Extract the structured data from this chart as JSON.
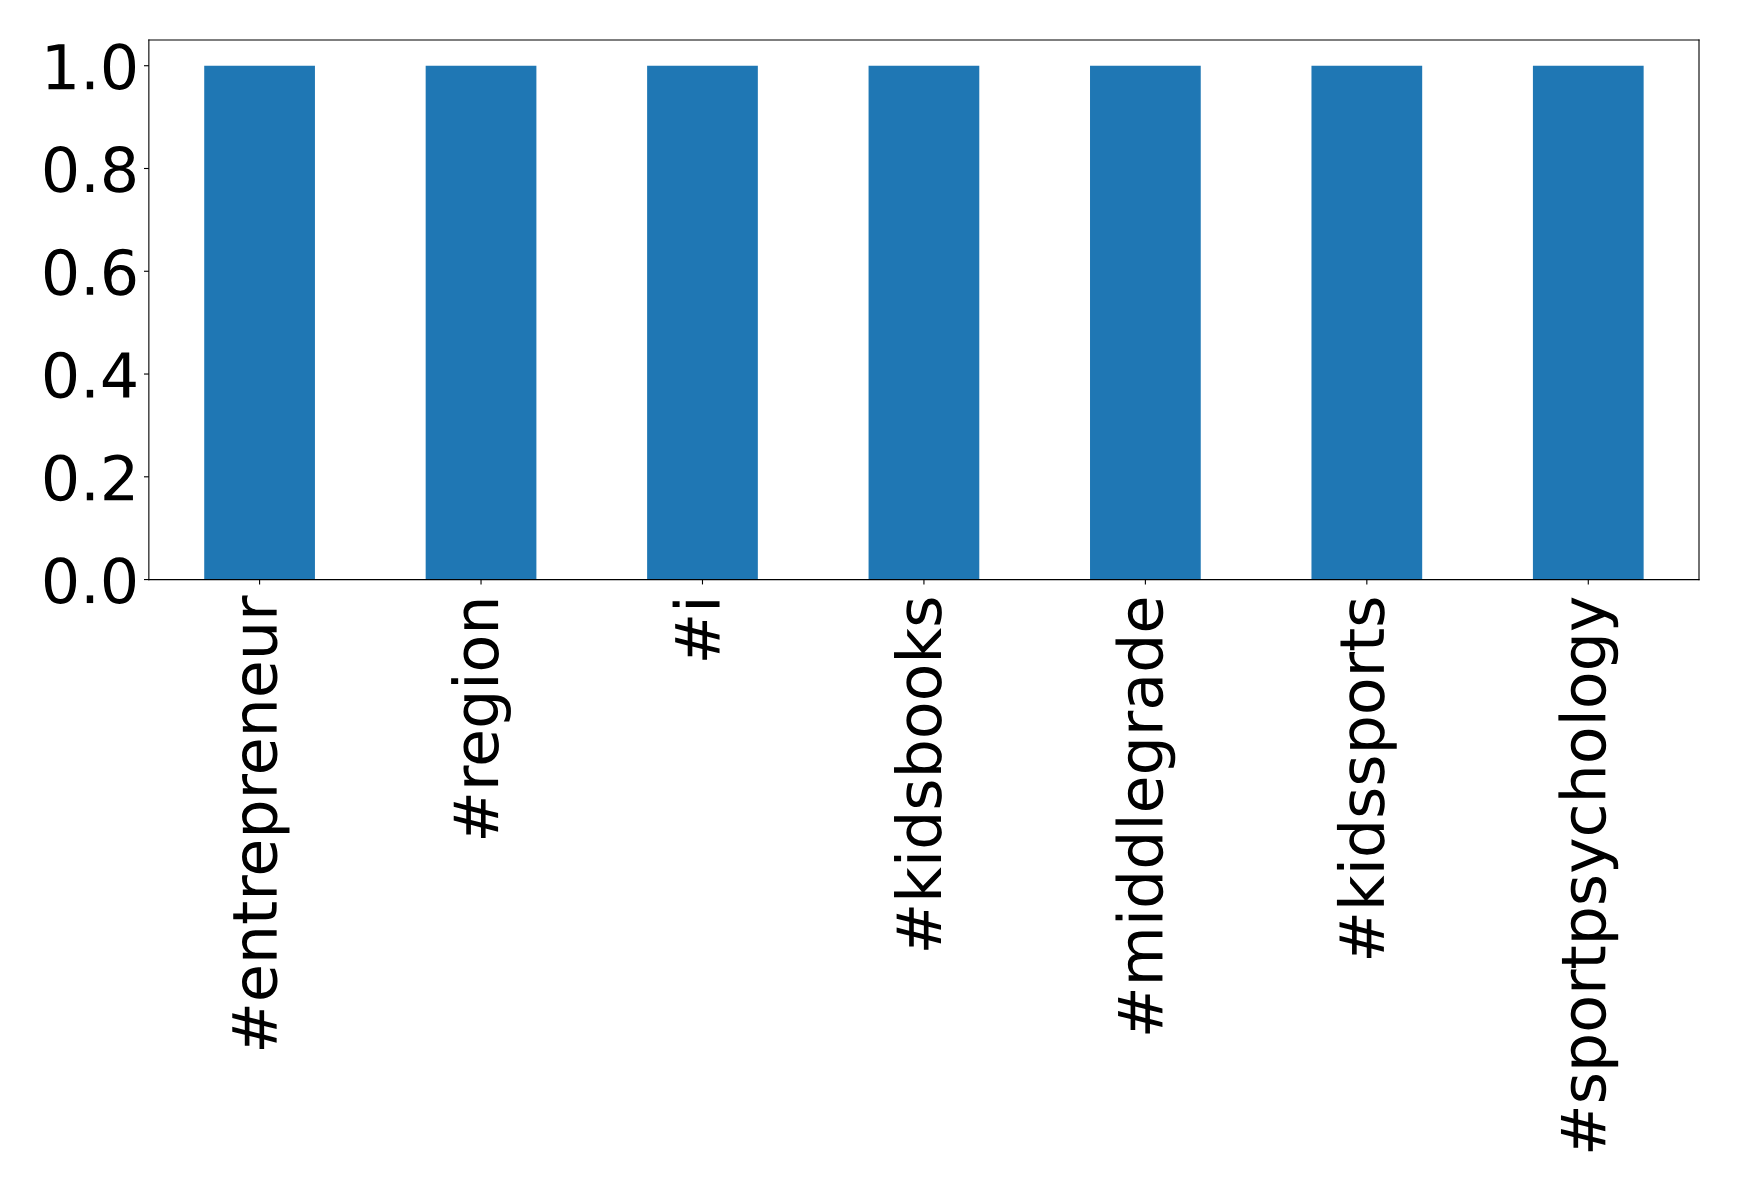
{
  "chart_data": {
    "type": "bar",
    "categories": [
      "#entrepreneur",
      "#region",
      "#i",
      "#kidsbooks",
      "#middlegrade",
      "#kidssports",
      "#sportpsychology"
    ],
    "values": [
      1.0,
      1.0,
      1.0,
      1.0,
      1.0,
      1.0,
      1.0
    ],
    "color": "#1f77b4",
    "ylim": [
      0,
      1.05
    ],
    "yticks": [
      {
        "value": 0,
        "label": "0.0"
      },
      {
        "value": 0.2,
        "label": "0.2"
      },
      {
        "value": 0.4,
        "label": "0.4"
      },
      {
        "value": 0.6,
        "label": "0.6"
      },
      {
        "value": 0.8,
        "label": "0.8"
      },
      {
        "value": 1.0,
        "label": "1.0"
      }
    ],
    "grid": false
  }
}
